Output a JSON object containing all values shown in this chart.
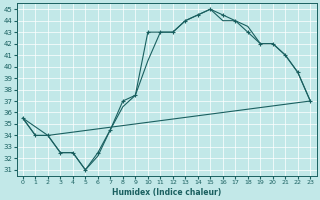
{
  "xlabel": "Humidex (Indice chaleur)",
  "xlim": [
    -0.5,
    23.5
  ],
  "ylim": [
    30.5,
    45.5
  ],
  "yticks": [
    31,
    32,
    33,
    34,
    35,
    36,
    37,
    38,
    39,
    40,
    41,
    42,
    43,
    44,
    45
  ],
  "xticks": [
    0,
    1,
    2,
    3,
    4,
    5,
    6,
    7,
    8,
    9,
    10,
    11,
    12,
    13,
    14,
    15,
    16,
    17,
    18,
    19,
    20,
    21,
    22,
    23
  ],
  "bg_color": "#c2e8e8",
  "grid_color": "#ffffff",
  "line_color": "#1a6060",
  "line1_x": [
    0,
    1,
    2,
    3,
    4,
    5,
    6,
    7,
    8,
    9,
    10,
    11,
    12,
    13,
    14,
    15,
    16,
    17,
    18,
    19,
    20,
    21,
    22,
    23
  ],
  "line1_y": [
    35.5,
    34.0,
    34.0,
    32.5,
    32.5,
    31.0,
    32.5,
    34.5,
    37.0,
    37.5,
    43.0,
    43.0,
    43.0,
    44.0,
    44.5,
    45.0,
    44.5,
    44.0,
    43.0,
    42.0,
    42.0,
    41.0,
    39.5,
    37.0
  ],
  "line2_x": [
    0,
    1,
    2,
    3,
    4,
    5,
    6,
    7,
    8,
    9,
    10,
    11,
    12,
    13,
    14,
    15,
    16,
    17,
    18,
    19,
    20,
    21,
    22,
    23
  ],
  "line2_y": [
    35.5,
    34.0,
    34.0,
    32.5,
    32.5,
    31.0,
    32.2,
    34.5,
    36.5,
    37.5,
    40.5,
    43.0,
    43.0,
    44.0,
    44.5,
    45.0,
    44.0,
    44.0,
    43.5,
    42.0,
    42.0,
    41.0,
    39.5,
    37.0
  ],
  "line3_x": [
    0,
    2,
    23
  ],
  "line3_y": [
    35.5,
    34.0,
    37.0
  ]
}
